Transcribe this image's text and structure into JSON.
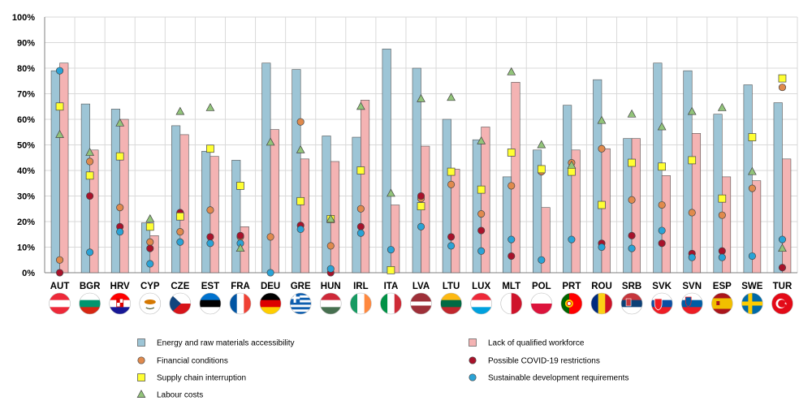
{
  "chart_data": {
    "type": "bar",
    "title": "",
    "xlabel": "",
    "ylabel": "",
    "ylim": [
      0,
      100
    ],
    "y_ticks": [
      "0%",
      "10%",
      "20%",
      "30%",
      "40%",
      "50%",
      "60%",
      "70%",
      "80%",
      "90%",
      "100%"
    ],
    "categories": [
      "AUT",
      "BGR",
      "HRV",
      "CYP",
      "CZE",
      "EST",
      "FRA",
      "DEU",
      "GRE",
      "HUN",
      "IRL",
      "ITA",
      "LVA",
      "LTU",
      "LUX",
      "MLT",
      "POL",
      "PRT",
      "ROU",
      "SRB",
      "SVK",
      "SVN",
      "ESP",
      "SWE",
      "TUR"
    ],
    "bar_series": [
      {
        "name": "Energy and raw materials accessibility",
        "color": "#9dc5d6",
        "values": [
          79,
          66,
          64,
          19.5,
          57.5,
          47.5,
          44,
          82,
          79.5,
          53.5,
          53,
          87.5,
          80,
          60,
          52,
          37.5,
          48,
          65.5,
          75.5,
          52.5,
          82,
          79,
          62,
          73.5,
          66.5
        ]
      },
      {
        "name": "Lack of qualified workforce",
        "color": "#f4b3b3",
        "values": [
          82,
          48,
          60,
          14.5,
          54,
          45.5,
          18,
          56,
          44.5,
          43.5,
          67.5,
          26.5,
          49.5,
          40.5,
          57,
          74.5,
          25.5,
          48,
          48.5,
          52.5,
          38,
          54.5,
          37.5,
          36,
          44.5
        ]
      }
    ],
    "marker_series": [
      {
        "name": "Financial conditions",
        "shape": "circle",
        "color": "#e08a4d",
        "values": [
          5,
          43.5,
          25.5,
          12,
          16,
          24.5,
          14,
          14,
          59,
          10.5,
          25,
          null,
          29,
          34.5,
          23,
          34,
          39.5,
          43,
          48.5,
          28.5,
          26.5,
          23.5,
          22.5,
          33,
          72.5
        ]
      },
      {
        "name": "Possible COVID-19 restrictions",
        "shape": "circle",
        "color": "#a8122a",
        "values": [
          0,
          30,
          18,
          9.5,
          23.5,
          14,
          14.5,
          null,
          18.5,
          0,
          18,
          null,
          30,
          14,
          16.5,
          6.5,
          null,
          null,
          11.5,
          14.5,
          11.5,
          7.5,
          8.5,
          null,
          2
        ]
      },
      {
        "name": "Supply chain interruption",
        "shape": "square",
        "color": "#ffff33",
        "values": [
          65,
          38,
          45.5,
          18,
          22,
          48.5,
          34,
          null,
          28,
          21,
          40,
          1,
          26,
          39.5,
          32.5,
          47,
          40.5,
          39.5,
          26.5,
          43,
          41.5,
          44,
          29,
          53,
          76
        ]
      },
      {
        "name": "Sustainable development requirements",
        "shape": "circle",
        "color": "#2aa3d6",
        "values": [
          79,
          8,
          16,
          3.5,
          12,
          11.5,
          11.5,
          0,
          17,
          1.5,
          15.5,
          9,
          18,
          10.5,
          8.5,
          13,
          5,
          13,
          10,
          9.5,
          16.5,
          6,
          6,
          6.5,
          13
        ]
      },
      {
        "name": "Labour costs",
        "shape": "triangle",
        "color": "#92c47a",
        "values": [
          54,
          47,
          58.5,
          21,
          63,
          64.5,
          9.5,
          51,
          48,
          21,
          65,
          31,
          68,
          68.5,
          51.5,
          78.5,
          50,
          42,
          59.5,
          62,
          57,
          63,
          64.5,
          39.5,
          9.5
        ]
      }
    ],
    "legend": {
      "position": "bottom",
      "order": [
        "Energy and raw materials accessibility",
        "Lack of qualified workforce",
        "Financial conditions",
        "Possible COVID-19 restrictions",
        "Supply chain interruption",
        "Sustainable development requirements",
        "Labour costs"
      ]
    },
    "flags": [
      "AUT",
      "BGR",
      "HRV",
      "CYP",
      "CZE",
      "EST",
      "FRA",
      "DEU",
      "GRE",
      "HUN",
      "IRL",
      "ITA",
      "LVA",
      "LTU",
      "LUX",
      "MLT",
      "POL",
      "PRT",
      "ROU",
      "SRB",
      "SVK",
      "SVN",
      "ESP",
      "SWE",
      "TUR"
    ]
  }
}
